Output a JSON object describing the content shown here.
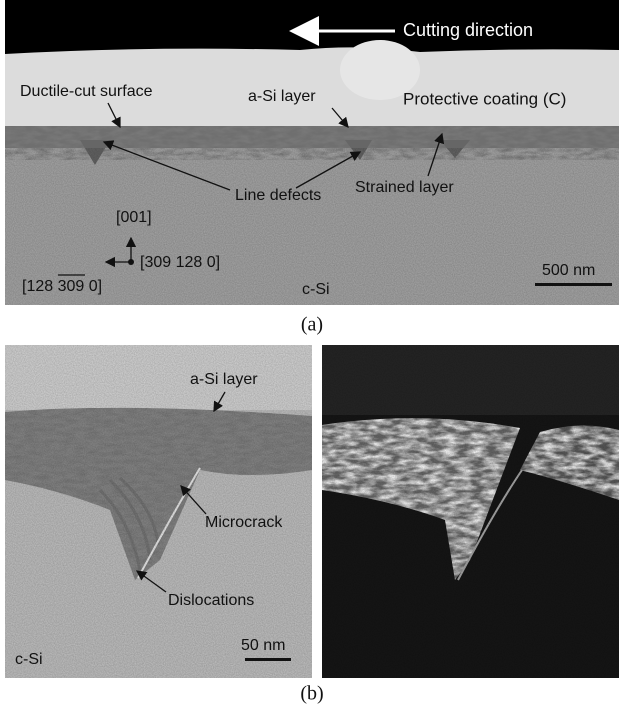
{
  "panel_a": {
    "label": "(a)",
    "cutting_direction": "Cutting direction",
    "ductile_cut_surface": "Ductile-cut surface",
    "a_si_layer": "a-Si layer",
    "protective_coating": "Protective coating (C)",
    "line_defects": "Line defects",
    "strained_layer": "Strained layer",
    "axis_up": "[001]",
    "axis_right": "[309 128 0]",
    "axis_left": "[128 309 0]",
    "material": "c-Si",
    "scale_bar": "500 nm"
  },
  "panel_b": {
    "label": "(b)",
    "a_si_layer": "a-Si layer",
    "microcrack": "Microcrack",
    "dislocations": "Dislocations",
    "material": "c-Si",
    "scale_bar": "50 nm"
  }
}
